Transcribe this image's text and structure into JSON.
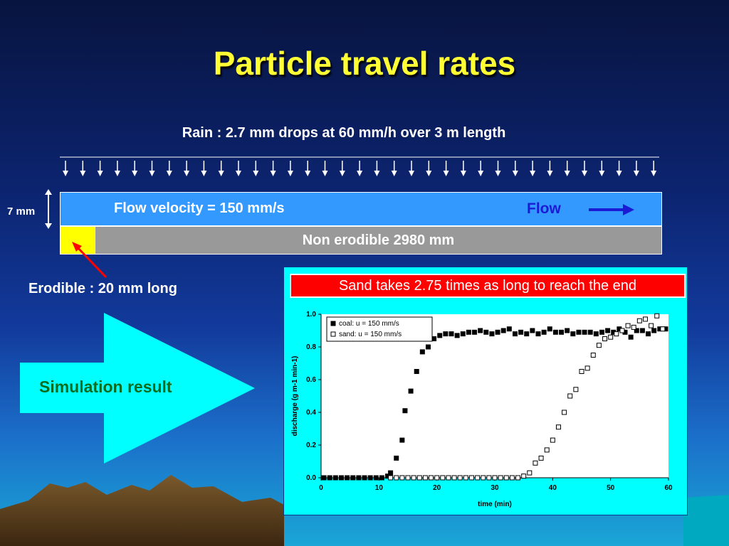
{
  "slide": {
    "title": "Particle travel rates",
    "rain_label": "Rain : 2.7 mm drops at 60 mm/h over 3 m length",
    "depth_label": "7 mm",
    "flow_velocity_label": "Flow velocity = 150 mm/s",
    "flow_label": "Flow",
    "non_erodible_label": "Non erodible 2980 mm",
    "erodible_label": "Erodible : 20 mm long",
    "simulation_label": "Simulation result",
    "callout": "Sand takes 2.75 times as long to reach the end"
  },
  "colors": {
    "title": "#ffff33",
    "flow_layer": "#3399ff",
    "erodible": "#ffff00",
    "non_erodible": "#999999",
    "panel": "#00ffff",
    "callout": "#ff0000",
    "simulation_text": "#0b6b1e"
  },
  "chart_data": {
    "type": "scatter",
    "xlabel": "time (min)",
    "ylabel": "discharge (g m-1 min-1)",
    "xlim": [
      0,
      60
    ],
    "ylim": [
      0,
      1.0
    ],
    "xticks": [
      "0",
      "10",
      "20",
      "30",
      "40",
      "50",
      "60"
    ],
    "yticks": [
      "0.0",
      "0.2",
      "0.4",
      "0.6",
      "0.8",
      "1.0"
    ],
    "legend_position": "top-left",
    "series": [
      {
        "name": "coal:  u = 150 mm/s",
        "marker": "filled-square",
        "x": [
          0.5,
          1.5,
          2.5,
          3.5,
          4.5,
          5.5,
          6.5,
          7.5,
          8.5,
          9.5,
          10.5,
          11.5,
          12,
          13,
          14,
          14.5,
          15.5,
          16.5,
          17.5,
          18.5,
          19.5,
          20.5,
          21.5,
          22.5,
          23.5,
          24.5,
          25.5,
          26.5,
          27.5,
          28.5,
          29.5,
          30.5,
          31.5,
          32.5,
          33.5,
          34.5,
          35.5,
          36.5,
          37.5,
          38.5,
          39.5,
          40.5,
          41.5,
          42.5,
          43.5,
          44.5,
          45.5,
          46.5,
          47.5,
          48.5,
          49.5,
          50.5,
          51.5,
          52.5,
          53.5,
          54.5,
          55.5,
          56.5,
          57.5,
          58.5,
          59.5
        ],
        "y": [
          0,
          0,
          0,
          0,
          0,
          0,
          0,
          0,
          0,
          0,
          0,
          0.01,
          0.03,
          0.12,
          0.23,
          0.41,
          0.53,
          0.65,
          0.77,
          0.8,
          0.85,
          0.87,
          0.88,
          0.88,
          0.87,
          0.88,
          0.89,
          0.89,
          0.9,
          0.89,
          0.88,
          0.89,
          0.9,
          0.91,
          0.88,
          0.89,
          0.88,
          0.9,
          0.88,
          0.89,
          0.91,
          0.89,
          0.89,
          0.9,
          0.88,
          0.89,
          0.89,
          0.89,
          0.88,
          0.89,
          0.9,
          0.89,
          0.91,
          0.89,
          0.86,
          0.9,
          0.9,
          0.88,
          0.9,
          0.91,
          0.91
        ]
      },
      {
        "name": "sand: u = 150 mm/s",
        "marker": "open-square",
        "x": [
          12,
          13,
          14,
          15,
          16,
          17,
          18,
          19,
          20,
          21,
          22,
          23,
          24,
          25,
          26,
          27,
          28,
          29,
          30,
          31,
          32,
          33,
          34,
          35,
          36,
          37,
          38,
          39,
          40,
          41,
          42,
          43,
          44,
          45,
          46,
          47,
          48,
          49,
          50,
          51,
          52,
          53,
          54,
          55,
          56,
          57,
          58,
          59
        ],
        "y": [
          0,
          0,
          0,
          0,
          0,
          0,
          0,
          0,
          0,
          0,
          0,
          0,
          0,
          0,
          0,
          0,
          0,
          0,
          0,
          0,
          0,
          0,
          0,
          0.01,
          0.03,
          0.09,
          0.12,
          0.17,
          0.23,
          0.31,
          0.4,
          0.5,
          0.54,
          0.65,
          0.67,
          0.75,
          0.81,
          0.85,
          0.86,
          0.88,
          0.9,
          0.93,
          0.92,
          0.96,
          0.97,
          0.93,
          0.99,
          0.91
        ]
      }
    ]
  }
}
